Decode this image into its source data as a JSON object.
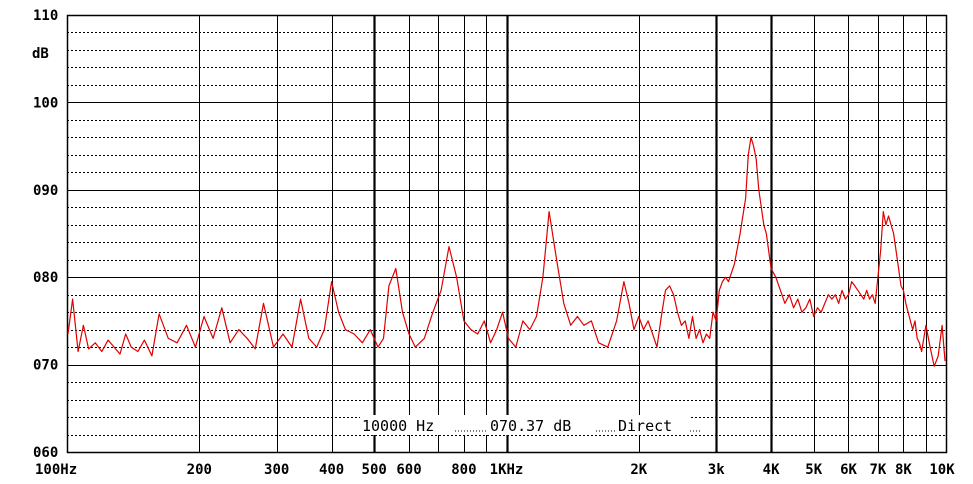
{
  "chart_data": {
    "type": "line",
    "ylabel": "dB",
    "ylim": [
      60,
      110
    ],
    "xscale": "log",
    "xlim": [
      100,
      10000
    ],
    "y_ticks": [
      "060",
      "070",
      "080",
      "090",
      "100",
      "110"
    ],
    "x_tick_labels": [
      {
        "freq": 100,
        "label": "100Hz"
      },
      {
        "freq": 200,
        "label": "200"
      },
      {
        "freq": 300,
        "label": "300"
      },
      {
        "freq": 400,
        "label": "400"
      },
      {
        "freq": 500,
        "label": "500"
      },
      {
        "freq": 600,
        "label": "600"
      },
      {
        "freq": 800,
        "label": "800"
      },
      {
        "freq": 1000,
        "label": "1KHz"
      },
      {
        "freq": 2000,
        "label": "2K"
      },
      {
        "freq": 3000,
        "label": "3k"
      },
      {
        "freq": 4000,
        "label": "4K"
      },
      {
        "freq": 5000,
        "label": "5K"
      },
      {
        "freq": 6000,
        "label": "6K"
      },
      {
        "freq": 7000,
        "label": "7K"
      },
      {
        "freq": 8000,
        "label": "8K"
      },
      {
        "freq": 10000,
        "label": "10K"
      }
    ],
    "grid": true,
    "readout": {
      "frequency": "10000 Hz",
      "level": "070.37 dB",
      "mode": "Direct"
    },
    "series_color": "#e00000",
    "series": [
      {
        "x": [
          100,
          103,
          106,
          109,
          112,
          116,
          120,
          124,
          128,
          132,
          136,
          140,
          145,
          150,
          156,
          162,
          170,
          178,
          187,
          196,
          205,
          215,
          225,
          235,
          246,
          257,
          268,
          280,
          295,
          310,
          325,
          340,
          355,
          370,
          385,
          400,
          415,
          430,
          450,
          470,
          490,
          510,
          525,
          540,
          560,
          580,
          600,
          620,
          650,
          680,
          710,
          740,
          770,
          800,
          830,
          860,
          890,
          920,
          950,
          980,
          1010,
          1050,
          1090,
          1130,
          1170,
          1210,
          1250,
          1300,
          1350,
          1400,
          1450,
          1500,
          1560,
          1620,
          1700,
          1780,
          1850,
          1900,
          1950,
          2000,
          2050,
          2100,
          2150,
          2200,
          2250,
          2300,
          2350,
          2400,
          2450,
          2500,
          2550,
          2600,
          2650,
          2700,
          2750,
          2800,
          2850,
          2900,
          2950,
          3000,
          3050,
          3100,
          3150,
          3200,
          3300,
          3400,
          3500,
          3550,
          3600,
          3650,
          3700,
          3750,
          3800,
          3850,
          3900,
          3950,
          4000,
          4100,
          4200,
          4300,
          4400,
          4500,
          4600,
          4700,
          4800,
          4900,
          5000,
          5100,
          5200,
          5300,
          5400,
          5500,
          5600,
          5700,
          5800,
          5900,
          6000,
          6100,
          6200,
          6300,
          6400,
          6500,
          6600,
          6700,
          6800,
          6900,
          7000,
          7100,
          7200,
          7300,
          7400,
          7500,
          7600,
          7700,
          7800,
          7900,
          8000,
          8100,
          8200,
          8300,
          8400,
          8500,
          8600,
          8700,
          8800,
          8900,
          9000,
          9200,
          9400,
          9600,
          9800,
          10000
        ],
        "y": [
          73.5,
          77.5,
          71.5,
          74.5,
          71.8,
          72.5,
          71.5,
          72.8,
          72.0,
          71.2,
          73.5,
          72.0,
          71.5,
          72.8,
          71.0,
          75.8,
          73.0,
          72.5,
          74.5,
          72.0,
          75.5,
          73.0,
          76.5,
          72.5,
          74.0,
          73.0,
          71.8,
          77.0,
          72.0,
          73.5,
          72.0,
          77.5,
          73.0,
          72.0,
          74.0,
          79.5,
          76.0,
          74.0,
          73.5,
          72.5,
          74.0,
          72.0,
          73.0,
          79.0,
          81.0,
          76.0,
          73.5,
          72.0,
          73.0,
          76.0,
          78.5,
          83.5,
          80.0,
          75.0,
          74.0,
          73.5,
          75.0,
          72.5,
          74.0,
          76.0,
          73.0,
          72.0,
          75.0,
          74.0,
          75.5,
          80.0,
          87.5,
          82.0,
          77.0,
          74.5,
          75.5,
          74.5,
          75.0,
          72.5,
          72.0,
          75.0,
          79.5,
          77.0,
          74.0,
          75.5,
          74.0,
          75.0,
          73.5,
          72.0,
          75.5,
          78.5,
          79.0,
          78.0,
          76.0,
          74.5,
          75.0,
          73.0,
          75.5,
          73.0,
          74.0,
          72.5,
          73.5,
          73.0,
          76.0,
          75.0,
          78.5,
          79.5,
          80.0,
          79.5,
          81.5,
          85.0,
          89.0,
          94.0,
          96.0,
          95.0,
          93.5,
          90.0,
          88.0,
          86.0,
          85.0,
          83.0,
          81.0,
          80.0,
          78.5,
          77.0,
          78.0,
          76.5,
          77.5,
          76.0,
          76.5,
          77.5,
          75.5,
          76.5,
          76.0,
          77.0,
          78.0,
          77.5,
          78.0,
          77.0,
          78.5,
          77.5,
          78.0,
          79.5,
          79.0,
          78.5,
          78.0,
          77.5,
          78.5,
          77.5,
          78.0,
          77.0,
          80.0,
          83.0,
          87.5,
          86.0,
          87.0,
          86.0,
          85.0,
          83.0,
          81.0,
          79.0,
          78.5,
          77.0,
          76.0,
          75.0,
          74.0,
          75.0,
          73.0,
          72.5,
          71.5,
          73.0,
          74.5,
          72.0,
          69.8,
          71.0,
          74.5,
          70.4
        ]
      }
    ]
  }
}
